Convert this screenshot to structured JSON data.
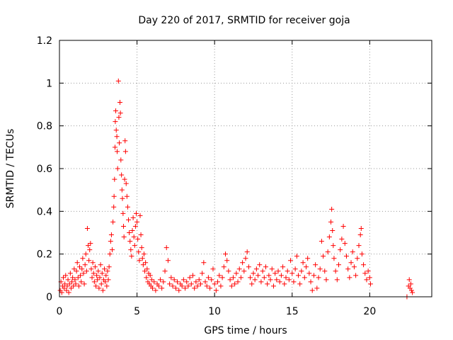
{
  "chart_data": {
    "type": "scatter",
    "title": "Day 220 of 2017, SRMTID for receiver goja",
    "xlabel": "GPS time / hours",
    "ylabel": "SRMTID / TECUs",
    "xlim": [
      0,
      24
    ],
    "ylim": [
      0,
      1.2
    ],
    "xticks": [
      0,
      5,
      10,
      15,
      20
    ],
    "xtick_labels": [
      "0",
      "5",
      "10",
      "15",
      "20"
    ],
    "yticks": [
      0,
      0.2,
      0.4,
      0.6,
      0.8,
      1,
      1.2
    ],
    "ytick_labels": [
      "0",
      "0.2",
      "0.4",
      "0.6",
      "0.8",
      "1",
      "1.2"
    ],
    "grid": true,
    "marker": "+",
    "series_color": "#ff0000",
    "series": [
      {
        "name": "SRMTID",
        "points": [
          [
            0.05,
            0.03
          ],
          [
            0.1,
            0.07
          ],
          [
            0.15,
            0.02
          ],
          [
            0.2,
            0.05
          ],
          [
            0.25,
            0.09
          ],
          [
            0.3,
            0.04
          ],
          [
            0.35,
            0.06
          ],
          [
            0.4,
            0.1
          ],
          [
            0.45,
            0.03
          ],
          [
            0.5,
            0.05
          ],
          [
            0.55,
            0.08
          ],
          [
            0.6,
            0.02
          ],
          [
            0.65,
            0.06
          ],
          [
            0.7,
            0.11
          ],
          [
            0.75,
            0.04
          ],
          [
            0.8,
            0.07
          ],
          [
            0.85,
            0.09
          ],
          [
            0.9,
            0.05
          ],
          [
            0.95,
            0.13
          ],
          [
            1.0,
            0.08
          ],
          [
            1.05,
            0.06
          ],
          [
            1.1,
            0.12
          ],
          [
            1.15,
            0.16
          ],
          [
            1.2,
            0.09
          ],
          [
            1.25,
            0.05
          ],
          [
            1.3,
            0.14
          ],
          [
            1.35,
            0.1
          ],
          [
            1.4,
            0.07
          ],
          [
            1.45,
            0.13
          ],
          [
            1.5,
            0.18
          ],
          [
            1.55,
            0.11
          ],
          [
            1.6,
            0.06
          ],
          [
            1.65,
            0.15
          ],
          [
            1.7,
            0.2
          ],
          [
            1.75,
            0.12
          ],
          [
            1.8,
            0.32
          ],
          [
            1.85,
            0.24
          ],
          [
            1.9,
            0.17
          ],
          [
            1.95,
            0.22
          ],
          [
            2.0,
            0.25
          ],
          [
            2.05,
            0.13
          ],
          [
            2.1,
            0.09
          ],
          [
            2.15,
            0.16
          ],
          [
            2.2,
            0.11
          ],
          [
            2.25,
            0.07
          ],
          [
            2.3,
            0.14
          ],
          [
            2.35,
            0.05
          ],
          [
            2.4,
            0.1
          ],
          [
            2.45,
            0.08
          ],
          [
            2.5,
            0.12
          ],
          [
            2.55,
            0.04
          ],
          [
            2.6,
            0.09
          ],
          [
            2.65,
            0.15
          ],
          [
            2.7,
            0.06
          ],
          [
            2.75,
            0.11
          ],
          [
            2.8,
            0.03
          ],
          [
            2.85,
            0.08
          ],
          [
            2.9,
            0.13
          ],
          [
            2.95,
            0.07
          ],
          [
            3.0,
            0.1
          ],
          [
            3.05,
            0.05
          ],
          [
            3.1,
            0.12
          ],
          [
            3.15,
            0.08
          ],
          [
            3.2,
            0.14
          ],
          [
            3.25,
            0.2
          ],
          [
            3.3,
            0.26
          ],
          [
            3.35,
            0.29
          ],
          [
            3.4,
            0.22
          ],
          [
            3.45,
            0.35
          ],
          [
            3.5,
            0.42
          ],
          [
            3.52,
            0.47
          ],
          [
            3.55,
            0.55
          ],
          [
            3.58,
            0.7
          ],
          [
            3.6,
            0.82
          ],
          [
            3.63,
            0.87
          ],
          [
            3.66,
            0.78
          ],
          [
            3.7,
            0.75
          ],
          [
            3.72,
            0.68
          ],
          [
            3.75,
            0.6
          ],
          [
            3.8,
            1.01
          ],
          [
            3.83,
            0.84
          ],
          [
            3.86,
            0.72
          ],
          [
            3.9,
            0.91
          ],
          [
            3.93,
            0.86
          ],
          [
            3.96,
            0.64
          ],
          [
            4.0,
            0.57
          ],
          [
            4.03,
            0.5
          ],
          [
            4.06,
            0.46
          ],
          [
            4.1,
            0.39
          ],
          [
            4.13,
            0.33
          ],
          [
            4.16,
            0.28
          ],
          [
            4.2,
            0.55
          ],
          [
            4.23,
            0.73
          ],
          [
            4.26,
            0.68
          ],
          [
            4.3,
            0.53
          ],
          [
            4.35,
            0.47
          ],
          [
            4.4,
            0.42
          ],
          [
            4.45,
            0.36
          ],
          [
            4.5,
            0.3
          ],
          [
            4.55,
            0.26
          ],
          [
            4.6,
            0.22
          ],
          [
            4.65,
            0.19
          ],
          [
            4.7,
            0.31
          ],
          [
            4.75,
            0.37
          ],
          [
            4.8,
            0.28
          ],
          [
            4.85,
            0.24
          ],
          [
            4.9,
            0.33
          ],
          [
            4.95,
            0.39
          ],
          [
            5.0,
            0.35
          ],
          [
            5.05,
            0.27
          ],
          [
            5.1,
            0.21
          ],
          [
            5.15,
            0.17
          ],
          [
            5.2,
            0.38
          ],
          [
            5.25,
            0.29
          ],
          [
            5.3,
            0.23
          ],
          [
            5.35,
            0.18
          ],
          [
            5.4,
            0.15
          ],
          [
            5.45,
            0.2
          ],
          [
            5.5,
            0.12
          ],
          [
            5.55,
            0.16
          ],
          [
            5.6,
            0.09
          ],
          [
            5.65,
            0.13
          ],
          [
            5.7,
            0.07
          ],
          [
            5.75,
            0.11
          ],
          [
            5.8,
            0.06
          ],
          [
            5.85,
            0.1
          ],
          [
            5.9,
            0.05
          ],
          [
            5.95,
            0.08
          ],
          [
            6.0,
            0.04
          ],
          [
            6.1,
            0.07
          ],
          [
            6.2,
            0.03
          ],
          [
            6.3,
            0.06
          ],
          [
            6.4,
            0.05
          ],
          [
            6.5,
            0.08
          ],
          [
            6.6,
            0.04
          ],
          [
            6.7,
            0.07
          ],
          [
            6.8,
            0.12
          ],
          [
            6.9,
            0.23
          ],
          [
            7.0,
            0.17
          ],
          [
            7.1,
            0.06
          ],
          [
            7.2,
            0.09
          ],
          [
            7.3,
            0.05
          ],
          [
            7.4,
            0.08
          ],
          [
            7.5,
            0.04
          ],
          [
            7.6,
            0.07
          ],
          [
            7.7,
            0.03
          ],
          [
            7.8,
            0.06
          ],
          [
            7.9,
            0.05
          ],
          [
            8.0,
            0.08
          ],
          [
            8.1,
            0.04
          ],
          [
            8.2,
            0.07
          ],
          [
            8.3,
            0.05
          ],
          [
            8.4,
            0.09
          ],
          [
            8.5,
            0.06
          ],
          [
            8.6,
            0.1
          ],
          [
            8.7,
            0.04
          ],
          [
            8.8,
            0.07
          ],
          [
            8.9,
            0.05
          ],
          [
            9.0,
            0.08
          ],
          [
            9.1,
            0.06
          ],
          [
            9.2,
            0.11
          ],
          [
            9.3,
            0.16
          ],
          [
            9.4,
            0.07
          ],
          [
            9.5,
            0.05
          ],
          [
            9.6,
            0.09
          ],
          [
            9.7,
            0.04
          ],
          [
            9.8,
            0.08
          ],
          [
            9.9,
            0.13
          ],
          [
            10.0,
            0.06
          ],
          [
            10.1,
            0.03
          ],
          [
            10.2,
            0.07
          ],
          [
            10.3,
            0.1
          ],
          [
            10.4,
            0.05
          ],
          [
            10.5,
            0.09
          ],
          [
            10.6,
            0.14
          ],
          [
            10.7,
            0.2
          ],
          [
            10.8,
            0.17
          ],
          [
            10.9,
            0.12
          ],
          [
            11.0,
            0.08
          ],
          [
            11.1,
            0.05
          ],
          [
            11.2,
            0.09
          ],
          [
            11.3,
            0.06
          ],
          [
            11.4,
            0.11
          ],
          [
            11.5,
            0.07
          ],
          [
            11.6,
            0.13
          ],
          [
            11.7,
            0.09
          ],
          [
            11.8,
            0.16
          ],
          [
            11.9,
            0.12
          ],
          [
            12.0,
            0.18
          ],
          [
            12.1,
            0.21
          ],
          [
            12.2,
            0.14
          ],
          [
            12.3,
            0.09
          ],
          [
            12.4,
            0.06
          ],
          [
            12.5,
            0.11
          ],
          [
            12.6,
            0.08
          ],
          [
            12.7,
            0.13
          ],
          [
            12.8,
            0.1
          ],
          [
            12.9,
            0.15
          ],
          [
            13.0,
            0.07
          ],
          [
            13.1,
            0.12
          ],
          [
            13.2,
            0.09
          ],
          [
            13.3,
            0.14
          ],
          [
            13.4,
            0.06
          ],
          [
            13.5,
            0.1
          ],
          [
            13.6,
            0.08
          ],
          [
            13.7,
            0.13
          ],
          [
            13.8,
            0.05
          ],
          [
            13.9,
            0.11
          ],
          [
            14.0,
            0.08
          ],
          [
            14.1,
            0.12
          ],
          [
            14.2,
            0.07
          ],
          [
            14.3,
            0.1
          ],
          [
            14.4,
            0.14
          ],
          [
            14.5,
            0.06
          ],
          [
            14.6,
            0.09
          ],
          [
            14.7,
            0.12
          ],
          [
            14.8,
            0.08
          ],
          [
            14.9,
            0.17
          ],
          [
            15.0,
            0.11
          ],
          [
            15.1,
            0.07
          ],
          [
            15.2,
            0.13
          ],
          [
            15.3,
            0.19
          ],
          [
            15.4,
            0.1
          ],
          [
            15.5,
            0.06
          ],
          [
            15.6,
            0.12
          ],
          [
            15.7,
            0.16
          ],
          [
            15.8,
            0.09
          ],
          [
            15.9,
            0.14
          ],
          [
            16.0,
            0.18
          ],
          [
            16.1,
            0.11
          ],
          [
            16.2,
            0.07
          ],
          [
            16.3,
            0.03
          ],
          [
            16.4,
            0.1
          ],
          [
            16.5,
            0.15
          ],
          [
            16.6,
            0.04
          ],
          [
            16.7,
            0.09
          ],
          [
            16.8,
            0.13
          ],
          [
            16.9,
            0.26
          ],
          [
            17.0,
            0.19
          ],
          [
            17.1,
            0.12
          ],
          [
            17.2,
            0.08
          ],
          [
            17.3,
            0.21
          ],
          [
            17.4,
            0.28
          ],
          [
            17.5,
            0.35
          ],
          [
            17.55,
            0.41
          ],
          [
            17.6,
            0.31
          ],
          [
            17.65,
            0.24
          ],
          [
            17.7,
            0.18
          ],
          [
            17.8,
            0.12
          ],
          [
            17.9,
            0.08
          ],
          [
            18.0,
            0.15
          ],
          [
            18.1,
            0.22
          ],
          [
            18.2,
            0.27
          ],
          [
            18.3,
            0.33
          ],
          [
            18.4,
            0.25
          ],
          [
            18.5,
            0.19
          ],
          [
            18.6,
            0.13
          ],
          [
            18.7,
            0.09
          ],
          [
            18.8,
            0.16
          ],
          [
            18.9,
            0.21
          ],
          [
            19.0,
            0.14
          ],
          [
            19.1,
            0.1
          ],
          [
            19.2,
            0.18
          ],
          [
            19.3,
            0.24
          ],
          [
            19.4,
            0.29
          ],
          [
            19.45,
            0.32
          ],
          [
            19.5,
            0.2
          ],
          [
            19.6,
            0.15
          ],
          [
            19.7,
            0.11
          ],
          [
            19.8,
            0.08
          ],
          [
            19.9,
            0.12
          ],
          [
            20.0,
            0.09
          ],
          [
            20.05,
            0.06
          ],
          [
            22.4,
            0.0
          ],
          [
            22.5,
            0.05
          ],
          [
            22.55,
            0.08
          ],
          [
            22.6,
            0.04
          ],
          [
            22.65,
            0.06
          ],
          [
            22.7,
            0.03
          ],
          [
            22.75,
            0.02
          ]
        ]
      }
    ]
  }
}
